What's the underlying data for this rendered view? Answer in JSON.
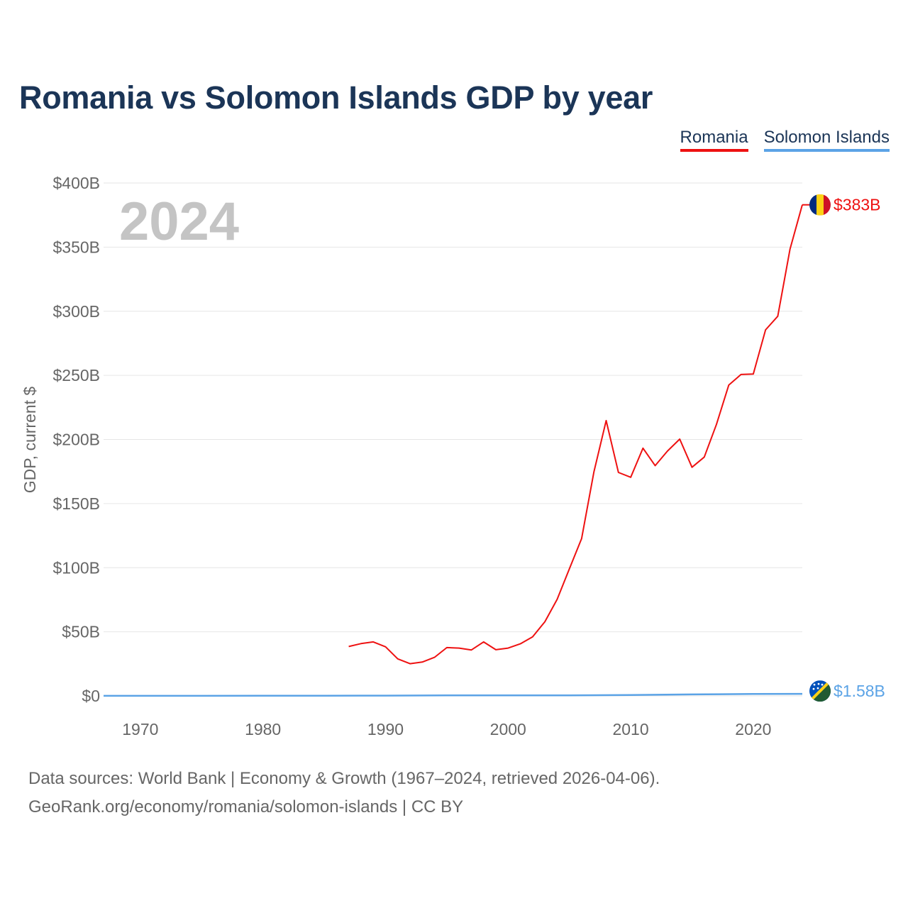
{
  "title": "Romania vs Solomon Islands GDP by year",
  "legend": [
    {
      "label": "Romania",
      "color": "#ee1111"
    },
    {
      "label": "Solomon Islands",
      "color": "#5ba3e6"
    }
  ],
  "year_watermark": "2024",
  "footer": {
    "line1": "Data sources: World Bank | Economy & Growth (1967–2024, retrieved 2026-04-06).",
    "line2": "GeoRank.org/economy/romania/solomon-islands | CC BY"
  },
  "chart_data": {
    "type": "line",
    "title": "Romania vs Solomon Islands GDP by year",
    "xlabel": "",
    "ylabel": "GDP, current $",
    "xlim": [
      1967,
      2024
    ],
    "ylim": [
      0,
      400
    ],
    "y_unit": "billions USD",
    "yticks": [
      0,
      50,
      100,
      150,
      200,
      250,
      300,
      350,
      400
    ],
    "ytick_labels": [
      "$0",
      "$50B",
      "$100B",
      "$150B",
      "$200B",
      "$250B",
      "$300B",
      "$350B",
      "$400B"
    ],
    "xticks": [
      1970,
      1980,
      1990,
      2000,
      2010,
      2020
    ],
    "xtick_labels": [
      "1970",
      "1980",
      "1990",
      "2000",
      "2010",
      "2020"
    ],
    "grid": true,
    "legend_position": "top-right",
    "series": [
      {
        "name": "Romania",
        "color": "#ee1111",
        "end_label": "$383B",
        "x": [
          1987,
          1988,
          1989,
          1990,
          1991,
          1992,
          1993,
          1994,
          1995,
          1996,
          1997,
          1998,
          1999,
          2000,
          2001,
          2002,
          2003,
          2004,
          2005,
          2006,
          2007,
          2008,
          2009,
          2010,
          2011,
          2012,
          2013,
          2014,
          2015,
          2016,
          2017,
          2018,
          2019,
          2020,
          2021,
          2022,
          2023,
          2024
        ],
        "values": [
          38.5,
          40.8,
          42.1,
          38.3,
          28.9,
          25.1,
          26.4,
          30.1,
          37.7,
          37.3,
          35.8,
          42.1,
          36.0,
          37.3,
          40.6,
          46.1,
          57.8,
          75.3,
          99.2,
          122.7,
          174.6,
          214.7,
          174.3,
          170.5,
          193.2,
          179.6,
          190.9,
          200.3,
          178.3,
          186.3,
          211.8,
          242.4,
          250.7,
          251.0,
          285.5,
          296.1,
          348.5,
          383.0
        ]
      },
      {
        "name": "Solomon Islands",
        "color": "#5ba3e6",
        "end_label": "$1.58B",
        "x": [
          1967,
          1970,
          1975,
          1980,
          1985,
          1990,
          1995,
          2000,
          2005,
          2010,
          2015,
          2020,
          2024
        ],
        "values": [
          0.03,
          0.03,
          0.06,
          0.12,
          0.16,
          0.21,
          0.39,
          0.44,
          0.42,
          0.68,
          1.15,
          1.55,
          1.58
        ]
      }
    ]
  }
}
